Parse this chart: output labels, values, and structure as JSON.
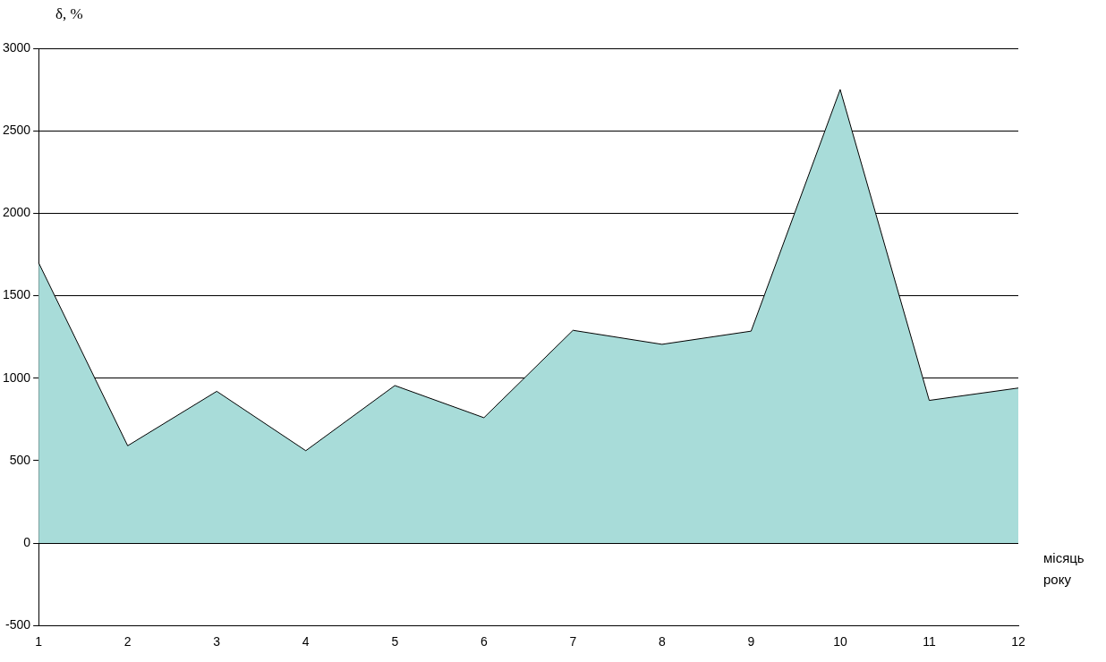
{
  "chart_data": {
    "type": "area",
    "ylabel": "δ, %",
    "xlabel": "місяць року",
    "categories": [
      "1",
      "2",
      "3",
      "4",
      "5",
      "6",
      "7",
      "8",
      "9",
      "10",
      "11",
      "12"
    ],
    "series": [
      {
        "color": "#a8dcd9",
        "values": [
          1700,
          590,
          920,
          560,
          955,
          760,
          1290,
          1205,
          1285,
          2750,
          865,
          940
        ]
      }
    ],
    "ylim": [
      -500,
      3000
    ],
    "yticks": [
      -500,
      0,
      500,
      1000,
      1500,
      2000,
      2500,
      3000
    ],
    "grid": "y",
    "legend": false
  }
}
